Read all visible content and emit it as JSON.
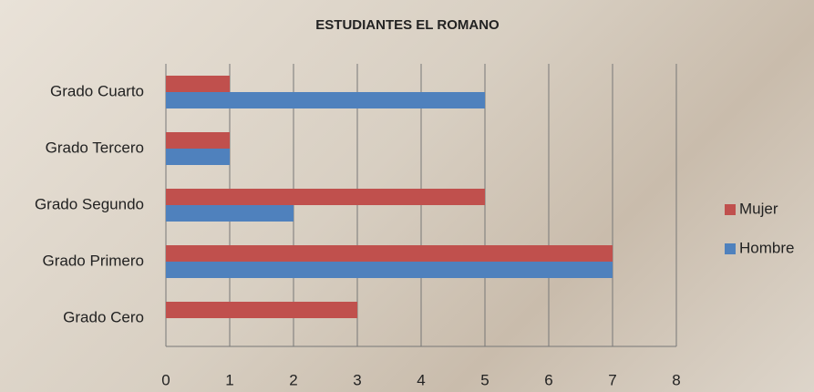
{
  "chart_data": {
    "type": "hbar",
    "title": "ESTUDIANTES EL ROMANO",
    "categories": [
      "Grado Cuarto",
      "Grado Tercero",
      "Grado Segundo",
      "Grado Primero",
      "Grado Cero"
    ],
    "series": [
      {
        "name": "Mujer",
        "color": "#c0504d",
        "values": [
          1,
          1,
          5,
          7,
          3
        ]
      },
      {
        "name": "Hombre",
        "color": "#4f81bd",
        "values": [
          5,
          1,
          2,
          7,
          0
        ]
      }
    ],
    "xlim": [
      0,
      8
    ],
    "xticks": [
      0,
      1,
      2,
      3,
      4,
      5,
      6,
      7,
      8
    ],
    "grid": true,
    "legend": "right"
  }
}
